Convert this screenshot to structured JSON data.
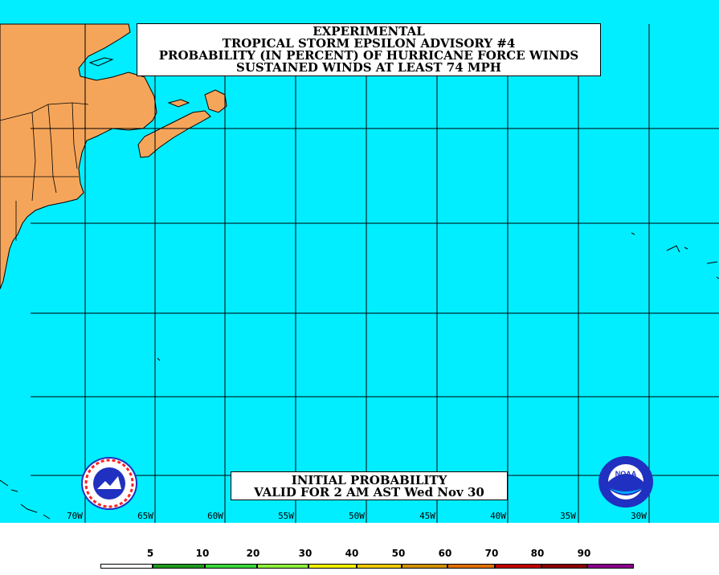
{
  "title_lines": [
    "EXPERIMENTAL",
    "TROPICAL STORM EPSILON ADVISORY #4",
    "PROBABILITY (IN PERCENT) OF HURRICANE FORCE WINDS",
    "SUSTAINED WINDS AT LEAST 74 MPH"
  ],
  "valid_lines": [
    "INITIAL PROBABILITY",
    "VALID FOR 2 AM AST Wed Nov 30"
  ],
  "longitude_labels": [
    "70W",
    "65W",
    "60W",
    "55W",
    "50W",
    "45W",
    "40W",
    "35W",
    "30W"
  ],
  "legend": {
    "labels": [
      "5",
      "10",
      "20",
      "30",
      "40",
      "50",
      "60",
      "70",
      "80",
      "90"
    ],
    "colors": [
      "#ffffff",
      "#1e9a1e",
      "#3ad83a",
      "#8cf03c",
      "#f0f000",
      "#f0c800",
      "#d09000",
      "#e07000",
      "#c00000",
      "#8c0000",
      "#8c008c"
    ]
  },
  "logos": {
    "left": "national-weather-service-icon",
    "right": "noaa-icon",
    "right_text": "NOAA"
  },
  "colors": {
    "ocean": "#00eeff",
    "land": "#f5a55a",
    "grid": "#000000"
  }
}
